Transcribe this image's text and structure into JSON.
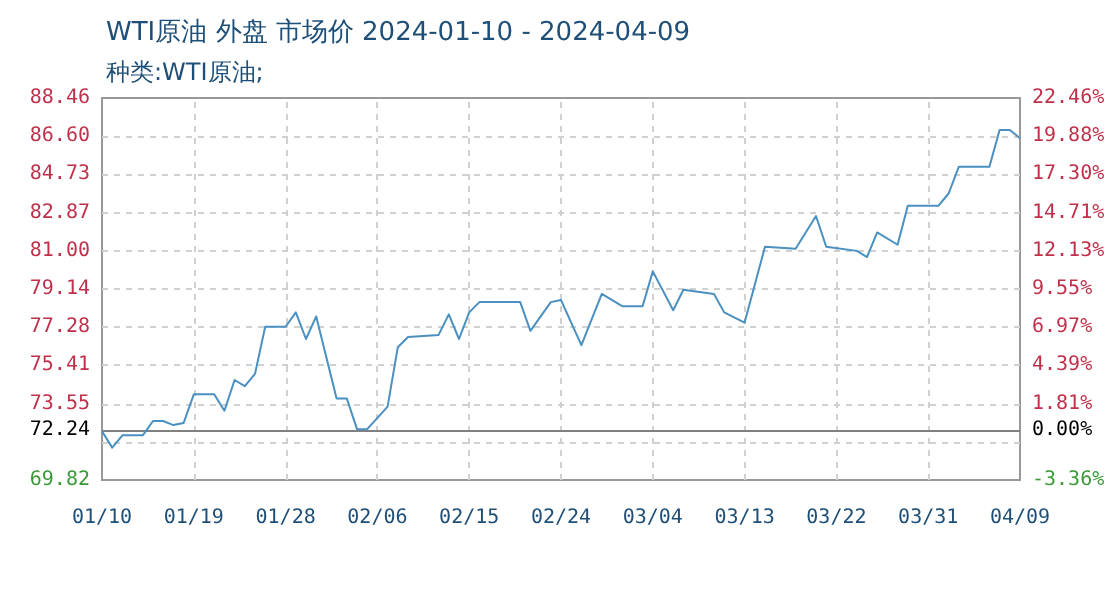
{
  "chart_data": {
    "type": "line",
    "title": "WTI原油 外盘 市场价 2024-01-10 - 2024-04-09",
    "subtitle": "种类:WTI原油;",
    "x": [
      "2024-01-10",
      "2024-01-11",
      "2024-01-12",
      "2024-01-14",
      "2024-01-15",
      "2024-01-16",
      "2024-01-17",
      "2024-01-18",
      "2024-01-19",
      "2024-01-21",
      "2024-01-22",
      "2024-01-23",
      "2024-01-24",
      "2024-01-25",
      "2024-01-26",
      "2024-01-28",
      "2024-01-29",
      "2024-01-30",
      "2024-01-31",
      "2024-02-02",
      "2024-02-03",
      "2024-02-04",
      "2024-02-05",
      "2024-02-07",
      "2024-02-08",
      "2024-02-09",
      "2024-02-12",
      "2024-02-13",
      "2024-02-14",
      "2024-02-15",
      "2024-02-16",
      "2024-02-20",
      "2024-02-21",
      "2024-02-23",
      "2024-02-24",
      "2024-02-26",
      "2024-02-28",
      "2024-03-01",
      "2024-03-03",
      "2024-03-04",
      "2024-03-06",
      "2024-03-07",
      "2024-03-10",
      "2024-03-11",
      "2024-03-13",
      "2024-03-15",
      "2024-03-18",
      "2024-03-20",
      "2024-03-21",
      "2024-03-24",
      "2024-03-25",
      "2024-03-26",
      "2024-03-28",
      "2024-03-29",
      "2024-04-01",
      "2024-04-02",
      "2024-04-03",
      "2024-04-06",
      "2024-04-07",
      "2024-04-08",
      "2024-04-09"
    ],
    "series": [
      {
        "color": "#4a90c0",
        "values": [
          72.2,
          71.4,
          72.0,
          72.0,
          72.7,
          72.7,
          72.5,
          72.6,
          74.0,
          74.0,
          73.2,
          74.7,
          74.4,
          75.0,
          77.3,
          77.3,
          78.0,
          76.7,
          77.8,
          73.8,
          73.8,
          72.3,
          72.3,
          73.4,
          76.3,
          76.8,
          76.9,
          77.9,
          76.7,
          78.0,
          78.5,
          78.5,
          77.1,
          78.5,
          78.6,
          76.4,
          78.9,
          78.3,
          78.3,
          80.0,
          78.1,
          79.1,
          78.9,
          78.0,
          77.5,
          81.2,
          81.1,
          82.7,
          81.2,
          81.0,
          80.7,
          81.9,
          81.3,
          83.2,
          83.2,
          83.8,
          85.1,
          85.1,
          86.9,
          86.9,
          86.5
        ]
      }
    ],
    "xlim": [
      "2024-01-10",
      "2024-04-09"
    ],
    "xticks": [
      {
        "value": "2024-01-10",
        "label": "01/10"
      },
      {
        "value": "2024-01-19",
        "label": "01/19"
      },
      {
        "value": "2024-01-28",
        "label": "01/28"
      },
      {
        "value": "2024-02-06",
        "label": "02/06"
      },
      {
        "value": "2024-02-15",
        "label": "02/15"
      },
      {
        "value": "2024-02-24",
        "label": "02/24"
      },
      {
        "value": "2024-03-04",
        "label": "03/04"
      },
      {
        "value": "2024-03-13",
        "label": "03/13"
      },
      {
        "value": "2024-03-22",
        "label": "03/22"
      },
      {
        "value": "2024-03-31",
        "label": "03/31"
      },
      {
        "value": "2024-04-09",
        "label": "04/09"
      }
    ],
    "ylim": [
      69.82,
      88.46
    ],
    "yticks": [
      69.82,
      {
        "value": 71.68,
        "label": null
      },
      72.24,
      73.55,
      75.41,
      77.28,
      79.14,
      {
        "value": 81,
        "label": "81.00"
      },
      82.87,
      84.73,
      {
        "value": 86.6,
        "label": "86.60"
      },
      88.46
    ],
    "y2lim": [
      -3.36,
      22.46
    ],
    "y2ticks": [
      {
        "value": -3.36,
        "label": "-3.36%"
      },
      {
        "value": 0,
        "label": "0.00%"
      },
      {
        "value": 1.81,
        "label": "1.81%"
      },
      {
        "value": 4.39,
        "label": "4.39%"
      },
      {
        "value": 6.97,
        "label": "6.97%"
      },
      {
        "value": 9.55,
        "label": "9.55%"
      },
      {
        "value": 12.13,
        "label": "12.13%"
      },
      {
        "value": 14.71,
        "label": "14.71%"
      },
      {
        "value": 17.3,
        "label": "17.30%"
      },
      {
        "value": 19.88,
        "label": "19.88%"
      },
      {
        "value": 22.46,
        "label": "22.46%"
      }
    ],
    "ref_lines": [
      {
        "axis": "y",
        "value": 72.24,
        "color": "#808080"
      }
    ],
    "grid": true,
    "marker": "none",
    "line_style": "solid"
  }
}
